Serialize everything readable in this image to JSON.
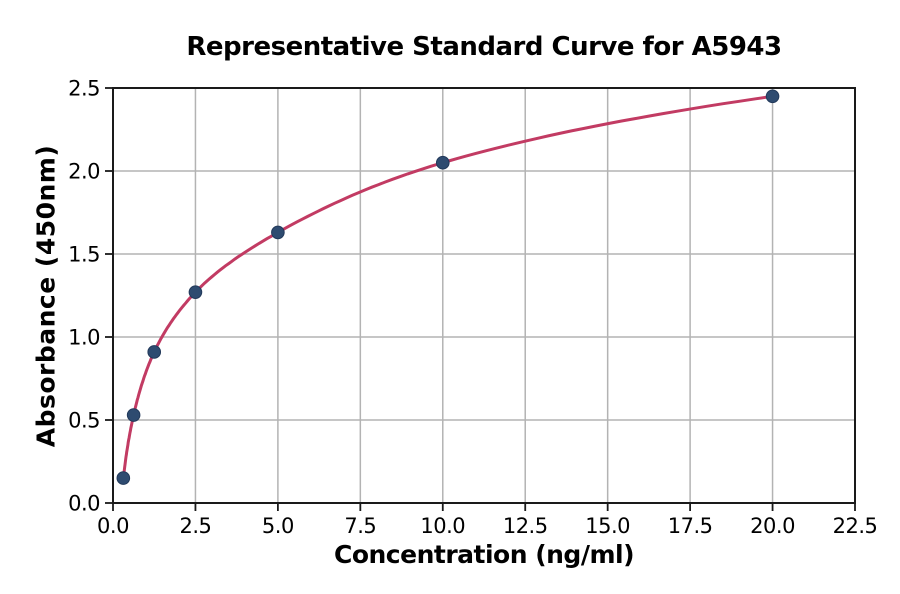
{
  "chart_data": {
    "type": "scatter",
    "title": "Representative Standard Curve for A5943",
    "xlabel": "Concentration (ng/ml)",
    "ylabel": "Absorbance (450nm)",
    "x": [
      0.313,
      0.625,
      1.25,
      2.5,
      5.0,
      10.0,
      20.0
    ],
    "y": [
      0.15,
      0.53,
      0.91,
      1.27,
      1.63,
      2.05,
      2.45
    ],
    "fit": "smooth saturating standard-curve fit drawn through all data points from x=0.313 to x=20",
    "xlim": [
      0,
      22.5
    ],
    "ylim": [
      0,
      2.5
    ],
    "xticks": [
      0,
      2.5,
      5,
      7.5,
      10,
      12.5,
      15,
      17.5,
      20,
      22.5
    ],
    "xtick_labels": [
      "0.0",
      "2.5",
      "5.0",
      "7.5",
      "10.0",
      "12.5",
      "15.0",
      "17.5",
      "20.0",
      "22.5"
    ],
    "yticks": [
      0,
      0.5,
      1,
      1.5,
      2,
      2.5
    ],
    "ytick_labels": [
      "0.0",
      "0.5",
      "1.0",
      "1.5",
      "2.0",
      "2.5"
    ],
    "grid": true,
    "legend": "none",
    "colors": {
      "curve": "#c23b63",
      "marker": "#2e4b70",
      "marker_edge": "#22395a",
      "grid": "#b3b3b3",
      "spine": "#1a1a1a",
      "text": "#000000",
      "background": "#ffffff"
    }
  }
}
